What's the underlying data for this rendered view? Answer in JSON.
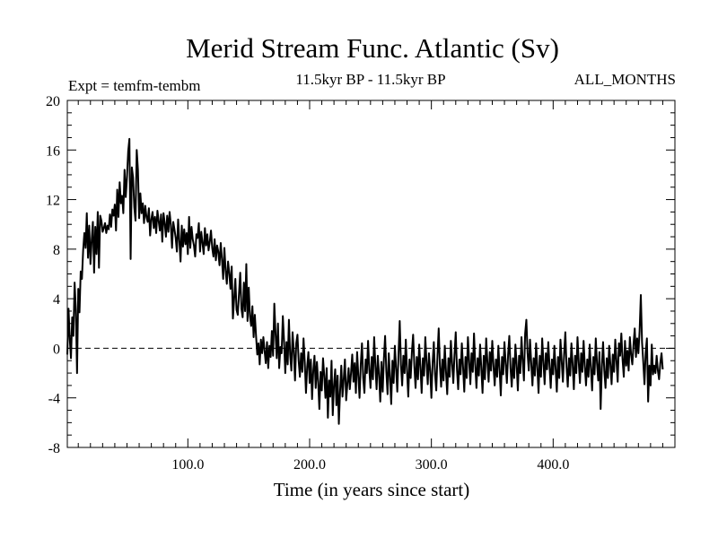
{
  "chart_data": {
    "type": "line",
    "title": "Merid Stream Func. Atlantic (Sv)",
    "subtitle_left": "Expt = temfm-tembm",
    "subtitle_center": "11.5kyr BP - 11.5kyr BP",
    "subtitle_right": "ALL_MONTHS",
    "xlabel": "Time (in years since start)",
    "ylabel": "",
    "xlim": [
      1,
      500
    ],
    "ylim": [
      -8,
      20
    ],
    "x_ticks": [
      100,
      200,
      300,
      400
    ],
    "x_tick_labels": [
      "100.0",
      "200.0",
      "300.0",
      "400.0"
    ],
    "y_ticks": [
      -8,
      -4,
      0,
      4,
      8,
      12,
      16,
      20
    ],
    "y_tick_labels": [
      "-8",
      "-4",
      "0",
      "4",
      "8",
      "12",
      "16",
      "20"
    ],
    "reference_line": {
      "y": 0,
      "style": "dashed"
    },
    "series": [
      {
        "name": "temfm-tembm",
        "x_start": 1,
        "x_step": 1,
        "values": [
          -0.5,
          3.2,
          0.8,
          -0.8,
          2.5,
          1.0,
          5.3,
          3.1,
          -2.0,
          4.8,
          2.9,
          6.2,
          5.6,
          7.9,
          9.3,
          8.1,
          10.9,
          7.3,
          9.9,
          6.8,
          8.7,
          10.2,
          6.1,
          9.8,
          7.6,
          11.0,
          6.5,
          10.7,
          10.3,
          9.4,
          9.7,
          10.1,
          9.3,
          9.9,
          9.6,
          10.8,
          9.8,
          11.2,
          10.7,
          11.6,
          9.5,
          12.8,
          10.6,
          13.4,
          11.7,
          12.3,
          10.9,
          14.4,
          12.2,
          13.8,
          15.9,
          16.9,
          7.2,
          14.6,
          13.8,
          11.4,
          10.3,
          16.0,
          14.4,
          10.5,
          12.5,
          10.9,
          11.7,
          10.1,
          11.5,
          10.6,
          10.2,
          11.3,
          9.1,
          10.4,
          11.0,
          9.7,
          10.6,
          9.3,
          11.1,
          10.3,
          9.5,
          10.8,
          8.6,
          10.9,
          10.1,
          9.0,
          10.7,
          9.4,
          11.0,
          10.0,
          8.1,
          10.2,
          9.6,
          8.9,
          7.8,
          10.4,
          8.7,
          7.0,
          9.9,
          8.2,
          9.6,
          8.4,
          9.3,
          7.6,
          10.6,
          8.1,
          9.8,
          8.8,
          8.3,
          7.4,
          9.2,
          8.9,
          10.1,
          7.8,
          9.4,
          8.5,
          7.6,
          9.7,
          8.3,
          9.2,
          7.9,
          8.6,
          9.5,
          8.1,
          7.4,
          8.8,
          7.1,
          8.3,
          7.8,
          6.7,
          8.5,
          7.2,
          5.6,
          8.1,
          6.3,
          5.2,
          7.0,
          6.1,
          4.8,
          6.6,
          2.4,
          4.0,
          5.6,
          3.1,
          2.7,
          4.4,
          6.1,
          3.2,
          2.5,
          5.3,
          3.0,
          6.8,
          2.2,
          4.9,
          2.6,
          1.8,
          3.4,
          0.9,
          2.7,
          1.0,
          -0.5,
          0.4,
          -1.3,
          0.7,
          -0.4,
          0.9,
          -0.2,
          -1.2,
          0.5,
          -1.6,
          0.2,
          -0.7,
          1.4,
          -0.6,
          3.6,
          1.2,
          -0.8,
          2.0,
          -1.6,
          0.1,
          -0.4,
          2.6,
          0.6,
          -2.0,
          0.5,
          -1.3,
          2.3,
          -0.5,
          -1.8,
          1.3,
          -0.2,
          -2.6,
          0.4,
          1.1,
          -1.0,
          -2.3,
          -0.4,
          -1.9,
          0.8,
          -1.1,
          -3.6,
          -1.5,
          -0.3,
          -2.8,
          -0.9,
          -4.1,
          -1.8,
          -0.6,
          -3.2,
          -1.1,
          -2.7,
          -4.9,
          -1.9,
          -3.4,
          -0.8,
          -2.2,
          -4.0,
          -1.6,
          -5.6,
          -2.6,
          -3.9,
          -1.0,
          -5.4,
          -3.0,
          -1.7,
          -4.6,
          -2.2,
          -6.1,
          -3.5,
          -1.4,
          -3.9,
          -2.5,
          -0.9,
          -4.2,
          -2.9,
          -1.6,
          -3.3,
          -2.0,
          -0.5,
          -2.7,
          -1.2,
          -3.6,
          -0.3,
          -2.2,
          -4.0,
          -1.3,
          0.4,
          -2.4,
          -3.6,
          -0.9,
          -2.0,
          0.6,
          -1.7,
          -3.2,
          -0.7,
          -2.5,
          0.9,
          -1.4,
          -3.3,
          -0.6,
          -2.1,
          -4.3,
          -1.1,
          -3.5,
          -0.8,
          1.0,
          -1.9,
          -3.7,
          -0.4,
          -2.3,
          -4.5,
          -1.0,
          -2.8,
          0.2,
          -1.6,
          -3.5,
          -0.5,
          2.2,
          -1.3,
          -3.0,
          -0.6,
          -2.0,
          0.7,
          -1.8,
          -3.9,
          -0.9,
          -2.4,
          -0.3,
          1.1,
          -1.4,
          -3.2,
          -0.7,
          -2.5,
          0.3,
          -1.5,
          -3.6,
          -0.8,
          -2.2,
          0.9,
          -1.1,
          -2.9,
          -0.4,
          -1.8,
          -4.0,
          -1.2,
          0.5,
          -2.1,
          -3.4,
          -0.6,
          1.6,
          -1.4,
          -3.1,
          -0.9,
          -2.6,
          0.2,
          -1.9,
          -3.7,
          -0.8,
          -2.3,
          0.6,
          -1.2,
          -2.8,
          -0.5,
          1.3,
          -1.7,
          -3.3,
          -0.9,
          -2.1,
          0.4,
          -1.5,
          -3.5,
          -0.7,
          -2.4,
          0.9,
          -1.0,
          -2.9,
          -0.4,
          -1.9,
          1.2,
          -1.3,
          -3.2,
          -0.8,
          -2.2,
          0.3,
          -1.6,
          -3.6,
          -0.6,
          -2.5,
          0.8,
          -1.1,
          -2.7,
          -0.3,
          -1.8,
          0.6,
          -1.4,
          -3.0,
          -0.9,
          -2.3,
          0.2,
          -1.7,
          -3.8,
          -0.7,
          -2.1,
          0.5,
          -1.2,
          -2.8,
          -0.5,
          1.0,
          -1.6,
          -3.1,
          -0.8,
          -2.4,
          0.3,
          -1.3,
          -3.4,
          -0.6,
          -2.0,
          0.9,
          -1.0,
          -2.6,
          1.2,
          2.3,
          -0.4,
          -1.8,
          0.7,
          -1.2,
          -3.0,
          -0.8,
          -2.2,
          0.4,
          -1.5,
          -3.6,
          -0.6,
          -2.3,
          0.8,
          -1.1,
          -2.9,
          -0.4,
          -1.7,
          0.5,
          -1.4,
          -3.2,
          -0.9,
          -2.1,
          0.2,
          -1.6,
          -3.5,
          -0.7,
          -2.4,
          0.7,
          -1.0,
          -2.7,
          -0.5,
          1.3,
          -1.5,
          -3.1,
          -0.8,
          -2.2,
          0.4,
          -1.3,
          -3.3,
          -0.6,
          -2.0,
          0.9,
          -1.1,
          -2.8,
          -0.4,
          -1.9,
          0.6,
          -1.4,
          -3.0,
          -0.9,
          -2.3,
          0.3,
          -1.6,
          -3.4,
          -0.7,
          -2.1,
          0.8,
          -1.2,
          -2.6,
          -0.3,
          -4.9,
          -1.5,
          0.5,
          -1.8,
          -3.2,
          -0.8,
          -2.4,
          0.2,
          -1.3,
          -2.9,
          -0.5,
          -1.9,
          0.7,
          -1.0,
          -2.7,
          0.4,
          -0.6,
          1.2,
          -0.9,
          -2.3,
          0.6,
          -1.4,
          -0.2,
          -1.8,
          0.9,
          -0.5,
          -1.3,
          0.3,
          1.6,
          -0.7,
          0.8,
          -0.4,
          1.4,
          4.3,
          0.5,
          -1.1,
          -2.9,
          -0.3,
          0.8,
          -4.3,
          -1.4,
          -3.0,
          0.3,
          -2.1,
          -1.4,
          -2.0,
          -0.6,
          -1.8,
          -2.5,
          -1.2,
          -0.4,
          -1.7
        ]
      }
    ]
  }
}
